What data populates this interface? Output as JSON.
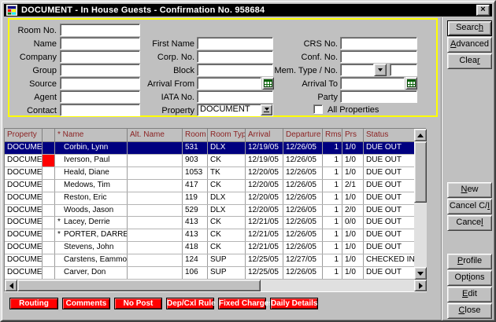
{
  "colors": {
    "window_bg": "#c0c0c0",
    "titlebar_bg": "#000000",
    "titlebar_text": "#ffffff",
    "highlight_border": "#ffff00",
    "table_header_text": "#8b2323",
    "selected_row_bg": "#000080",
    "selected_row_text": "#ffffff",
    "alert_red": "#ff0000"
  },
  "window": {
    "title": "DOCUMENT - In House Guests - Confirmation No.  958684",
    "close_glyph": "×"
  },
  "form": {
    "labels": {
      "room_no": "Room No.",
      "name": "Name",
      "company": "Company",
      "group": "Group",
      "source": "Source",
      "agent": "Agent",
      "contact": "Contact",
      "first_name": "First Name",
      "corp_no": "Corp. No.",
      "block": "Block",
      "arrival_from": "Arrival From",
      "iata_no": "IATA No.",
      "property": "Property",
      "crs_no": "CRS No.",
      "conf_no": "Conf. No.",
      "mem_type": "Mem. Type / No.",
      "arrival_to": "Arrival To",
      "party": "Party",
      "all_properties": "All Properties"
    },
    "values": {
      "property": "DOCUMENT"
    },
    "all_properties_checked": false
  },
  "side_buttons": {
    "search": {
      "text": "Search",
      "u": 5
    },
    "advanced": {
      "text": "Advanced",
      "u": 0
    },
    "clear": {
      "text": "Clear",
      "u": 4
    },
    "new": {
      "text": "New",
      "u": 0
    },
    "cancel_ci": {
      "text": "Cancel C/I",
      "u": 9
    },
    "cancel": {
      "text": "Cancel",
      "u": 5
    },
    "profile": {
      "text": "Profile",
      "u": 0
    },
    "options": {
      "text": "Options",
      "u": 3
    },
    "edit": {
      "text": "Edit",
      "u": 0
    },
    "close": {
      "text": "Close",
      "u": 0
    }
  },
  "table": {
    "columns": {
      "property": "Property",
      "flag": "",
      "name": "* Name",
      "alt_name": "Alt. Name",
      "room": "Room",
      "room_type": "Room Type",
      "arrival": "Arrival",
      "departure": "Departure",
      "rms": "Rms",
      "prs": "Prs",
      "status": "Status"
    },
    "rows": [
      {
        "property": "DOCUME",
        "flag": false,
        "star": false,
        "name": "Corbin, Lynn",
        "alt_name": "",
        "room": "531",
        "room_type": "DLX",
        "arrival": "12/19/05",
        "departure": "12/26/05",
        "rms": "1",
        "prs": "1/0",
        "status": "DUE OUT",
        "selected": true
      },
      {
        "property": "DOCUME",
        "flag": true,
        "star": false,
        "name": "Iverson, Paul",
        "alt_name": "",
        "room": "903",
        "room_type": "CK",
        "arrival": "12/19/05",
        "departure": "12/26/05",
        "rms": "1",
        "prs": "1/0",
        "status": "DUE OUT",
        "selected": false
      },
      {
        "property": "DOCUME",
        "flag": false,
        "star": false,
        "name": "Heald, Diane",
        "alt_name": "",
        "room": "1053",
        "room_type": "TK",
        "arrival": "12/20/05",
        "departure": "12/26/05",
        "rms": "1",
        "prs": "1/0",
        "status": "DUE OUT",
        "selected": false
      },
      {
        "property": "DOCUME",
        "flag": false,
        "star": false,
        "name": "Medows, Tim",
        "alt_name": "",
        "room": "417",
        "room_type": "CK",
        "arrival": "12/20/05",
        "departure": "12/26/05",
        "rms": "1",
        "prs": "2/1",
        "status": "DUE OUT",
        "selected": false
      },
      {
        "property": "DOCUME",
        "flag": false,
        "star": false,
        "name": "Reston, Eric",
        "alt_name": "",
        "room": "119",
        "room_type": "DLX",
        "arrival": "12/20/05",
        "departure": "12/26/05",
        "rms": "1",
        "prs": "1/0",
        "status": "DUE OUT",
        "selected": false
      },
      {
        "property": "DOCUME",
        "flag": false,
        "star": false,
        "name": "Woods, Jason",
        "alt_name": "",
        "room": "529",
        "room_type": "DLX",
        "arrival": "12/20/05",
        "departure": "12/26/05",
        "rms": "1",
        "prs": "2/0",
        "status": "DUE OUT",
        "selected": false
      },
      {
        "property": "DOCUME",
        "flag": false,
        "star": true,
        "name": "Lacey, Derrie",
        "alt_name": "",
        "room": "413",
        "room_type": "CK",
        "arrival": "12/21/05",
        "departure": "12/26/05",
        "rms": "1",
        "prs": "0/0",
        "status": "DUE OUT",
        "selected": false
      },
      {
        "property": "DOCUME",
        "flag": false,
        "star": true,
        "name": "PORTER, DARREL",
        "alt_name": "",
        "room": "413",
        "room_type": "CK",
        "arrival": "12/21/05",
        "departure": "12/26/05",
        "rms": "1",
        "prs": "1/0",
        "status": "DUE OUT",
        "selected": false
      },
      {
        "property": "DOCUME",
        "flag": false,
        "star": false,
        "name": "Stevens, John",
        "alt_name": "",
        "room": "418",
        "room_type": "CK",
        "arrival": "12/21/05",
        "departure": "12/26/05",
        "rms": "1",
        "prs": "1/0",
        "status": "DUE OUT",
        "selected": false
      },
      {
        "property": "DOCUME",
        "flag": false,
        "star": false,
        "name": "Carstens, Eammon",
        "alt_name": "",
        "room": "124",
        "room_type": "SUP",
        "arrival": "12/25/05",
        "departure": "12/27/05",
        "rms": "1",
        "prs": "1/0",
        "status": "CHECKED IN",
        "selected": false
      },
      {
        "property": "DOCUME",
        "flag": false,
        "star": false,
        "name": "Carver, Don",
        "alt_name": "",
        "room": "106",
        "room_type": "SUP",
        "arrival": "12/25/05",
        "departure": "12/26/05",
        "rms": "1",
        "prs": "1/0",
        "status": "DUE OUT",
        "selected": false
      }
    ]
  },
  "lamp_buttons": [
    "Routing",
    "Comments",
    "No Post",
    "Dep/Cxl Rule",
    "Fixed Charges",
    "Daily Details"
  ]
}
